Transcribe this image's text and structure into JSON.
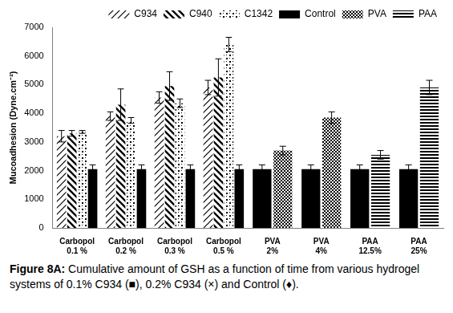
{
  "chart_data": {
    "type": "bar",
    "y_label": "Mucoadhesion (Dyne.cm⁻²)",
    "caption": "Figure 8A: Cumulative amount of GSH as a function of time from various hydrogel systems of 0.1% C934 (■), 0.2% C934 (×) and Control (♦).",
    "categories": [
      "Carbopol 0.1 %",
      "Carbopol 0.2 %",
      "Carbopol 0.3 %",
      "Carbopol 0.5 %",
      "PVA 2%",
      "PVA 4%",
      "PAA 12.5%",
      "PAA 25%"
    ],
    "series": [
      {
        "name": "C934",
        "color": "#000000",
        "values": [
          3200,
          3900,
          4550,
          4900,
          null,
          null,
          null,
          null
        ],
        "errors": [
          200,
          150,
          200,
          250,
          null,
          null,
          null,
          null
        ]
      },
      {
        "name": "C940",
        "color": "#000000",
        "values": [
          3300,
          4300,
          4950,
          5250,
          null,
          null,
          null,
          null
        ],
        "errors": [
          100,
          550,
          500,
          650,
          null,
          null,
          null,
          null
        ]
      },
      {
        "name": "C1342",
        "color": "#000000",
        "values": [
          3350,
          3750,
          4350,
          6400,
          null,
          null,
          null,
          null
        ],
        "errors": [
          50,
          100,
          150,
          250,
          null,
          null,
          null,
          null
        ]
      },
      {
        "name": "Control",
        "color": "#000000",
        "values": [
          2050,
          2050,
          2050,
          2050,
          2050,
          2050,
          2050,
          2050
        ],
        "errors": [
          150,
          150,
          150,
          150,
          150,
          150,
          150,
          150
        ]
      },
      {
        "name": "PVA",
        "color": "#000000",
        "values": [
          null,
          null,
          null,
          null,
          2700,
          3850,
          null,
          null
        ],
        "errors": [
          null,
          null,
          null,
          null,
          150,
          200,
          null,
          null
        ]
      },
      {
        "name": "PAA",
        "color": "#000000",
        "values": [
          null,
          null,
          null,
          null,
          null,
          null,
          2550,
          4900
        ],
        "errors": [
          null,
          null,
          null,
          null,
          null,
          null,
          150,
          250
        ]
      }
    ],
    "ylim": [
      0,
      7000
    ],
    "yticks": [
      0,
      1000,
      2000,
      3000,
      4000,
      5000,
      6000,
      7000
    ],
    "grid": false,
    "legend": "top"
  }
}
